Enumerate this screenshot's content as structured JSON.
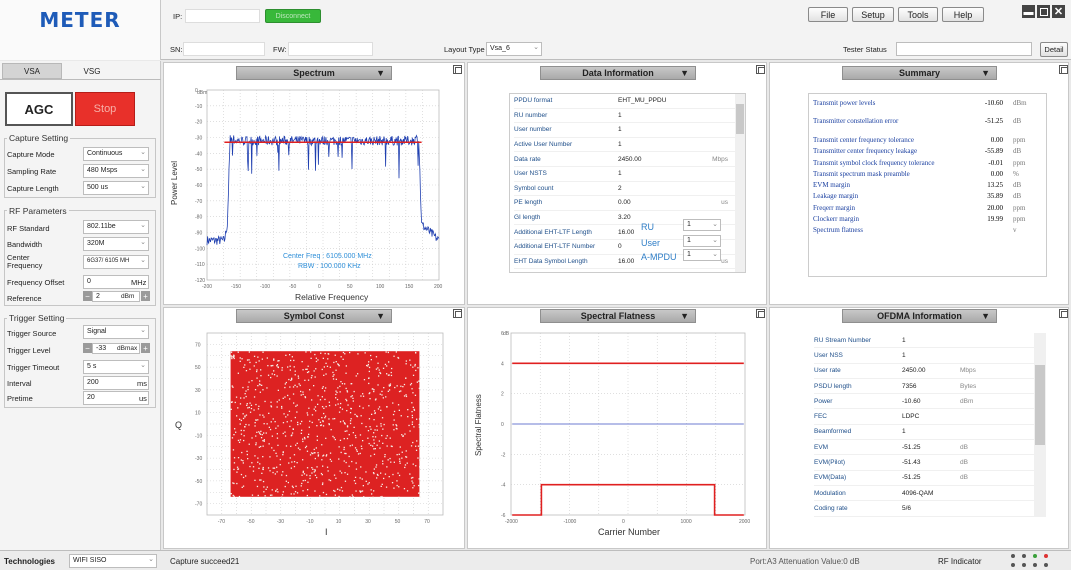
{
  "app": {
    "logo": "METER"
  },
  "top": {
    "ip_label": "IP:",
    "ip_value": "",
    "connect_button": "Disconnect",
    "sn_label": "SN:",
    "sn_value": "",
    "fw_label": "FW:",
    "fw_value": "",
    "layout_label": "Layout Type",
    "layout_value": "Vsa_6",
    "tester_status_label": "Tester Status",
    "tester_status_value": "",
    "detail_button": "Detail"
  },
  "menu": {
    "file": "File",
    "setup": "Setup",
    "tools": "Tools",
    "help": "Help"
  },
  "colors": {
    "stop": "#e8302a",
    "connect": "#38b83a",
    "trace": "#1f3fb0",
    "limit": "#e02020",
    "const": "#dd2222"
  },
  "left": {
    "tabs": [
      "VSA",
      "VSG"
    ],
    "agc_button": "AGC",
    "stop_button": "Stop",
    "capture_title": "Capture Setting",
    "capture_fields": [
      {
        "label": "Capture Mode",
        "value": "Continuous"
      },
      {
        "label": "Sampling Rate",
        "value": "480 Msps"
      },
      {
        "label": "Capture Length",
        "value": "500 us"
      }
    ],
    "rf_title": "RF Parameters",
    "rf_standard": {
      "label": "RF Standard",
      "value": "802.11be"
    },
    "bandwidth": {
      "label": "Bandwidth",
      "value": "320M"
    },
    "center_freq": {
      "label": "Center Frequency",
      "value": "6G37/ 6105 MH"
    },
    "freq_offset": {
      "label": "Frequency Offset",
      "value": "0",
      "unit": "MHz"
    },
    "reference": {
      "label": "Reference",
      "value": "2",
      "unit": "dBm"
    },
    "trigger_title": "Trigger Setting",
    "trigger_source": {
      "label": "Trigger Source",
      "value": "Signal"
    },
    "trigger_level": {
      "label": "Trigger Level",
      "value": "-33",
      "unit": "dBmax"
    },
    "trigger_timeout": {
      "label": "Trigger Timeout",
      "value": "5 s"
    },
    "interval": {
      "label": "Interval",
      "value": "200",
      "unit": "ms"
    },
    "pretime": {
      "label": "Pretime",
      "value": "20",
      "unit": "us"
    }
  },
  "spectrum": {
    "title": "Spectrum",
    "ylabel": "Power Level",
    "xlabel": "Relative Frequency",
    "xunit": "MHz",
    "yunit": "dBm",
    "center_text": "Center Freq : 6105.000 MHz",
    "rbw_text": "RBW : 100.000 KHz"
  },
  "data_info": {
    "title": "Data Information",
    "rows": [
      {
        "k": "PPDU format",
        "v": "EHT_MU_PPDU",
        "u": ""
      },
      {
        "k": "RU number",
        "v": "1",
        "u": ""
      },
      {
        "k": "User number",
        "v": "1",
        "u": ""
      },
      {
        "k": "Active User Number",
        "v": "1",
        "u": ""
      },
      {
        "k": "Data rate",
        "v": "2450.00",
        "u": "Mbps"
      },
      {
        "k": "User NSTS",
        "v": "1",
        "u": ""
      },
      {
        "k": "Symbol count",
        "v": "2",
        "u": ""
      },
      {
        "k": "PE length",
        "v": "0.00",
        "u": "us"
      },
      {
        "k": "GI length",
        "v": "3.20",
        "u": ""
      },
      {
        "k": "Additional EHT-LTF Length",
        "v": "16.00",
        "u": ""
      },
      {
        "k": "Additional EHT-LTF Number",
        "v": "0",
        "u": ""
      },
      {
        "k": "EHT Data Symbol Length",
        "v": "16.00",
        "u": "us"
      }
    ],
    "ru_label": "RU",
    "ru_value": "1",
    "user_label": "User",
    "user_value": "1",
    "ampdu_label": "A-MPDU",
    "ampdu_value": "1"
  },
  "summary": {
    "title": "Summary",
    "rows": [
      {
        "k": "Transmit power levels",
        "v": "-10.60",
        "u": "dBm"
      },
      {
        "k": "Transmitter constellation error",
        "v": "-51.25",
        "u": "dB"
      },
      {
        "k": "Transmit center frequency tolerance",
        "v": "0.00",
        "u": "ppm"
      },
      {
        "k": "Transmitter center frequency leakage",
        "v": "-55.89",
        "u": "dB"
      },
      {
        "k": "Transmit symbol clock frequency tolerance",
        "v": "-0.01",
        "u": "ppm"
      },
      {
        "k": "Transmit spectrum mask preamble",
        "v": "0.00",
        "u": "%"
      },
      {
        "k": "EVM margin",
        "v": "13.25",
        "u": "dB"
      },
      {
        "k": "Leakage margin",
        "v": "35.89",
        "u": "dB"
      },
      {
        "k": "Freqerr margin",
        "v": "20.00",
        "u": "ppm"
      },
      {
        "k": "Clockerr margin",
        "v": "19.99",
        "u": "ppm"
      },
      {
        "k": "Spectrum flatness",
        "v": "",
        "u": "v"
      }
    ]
  },
  "symbol_const": {
    "title": "Symbol Const",
    "ylabel": "Q",
    "xlabel": "I"
  },
  "spectral_flatness": {
    "title": "Spectral Flatness",
    "ylabel": "Spectral Flatness",
    "xlabel": "Carrier Number",
    "yunit": "dB"
  },
  "ofdma": {
    "title": "OFDMA Information",
    "rows": [
      {
        "k": "RU Stream Number",
        "v": "1",
        "u": ""
      },
      {
        "k": "User NSS",
        "v": "1",
        "u": ""
      },
      {
        "k": "User rate",
        "v": "2450.00",
        "u": "Mbps"
      },
      {
        "k": "PSDU length",
        "v": "7356",
        "u": "Bytes"
      },
      {
        "k": "Power",
        "v": "-10.60",
        "u": "dBm"
      },
      {
        "k": "FEC",
        "v": "LDPC",
        "u": ""
      },
      {
        "k": "Beamformed",
        "v": "1",
        "u": ""
      },
      {
        "k": "EVM",
        "v": "-51.25",
        "u": "dB"
      },
      {
        "k": "EVM(Pilot)",
        "v": "-51.43",
        "u": "dB"
      },
      {
        "k": "EVM(Data)",
        "v": "-51.25",
        "u": "dB"
      },
      {
        "k": "Modulation",
        "v": "4096-QAM",
        "u": ""
      },
      {
        "k": "Coding rate",
        "v": "5/6",
        "u": ""
      }
    ]
  },
  "status": {
    "tech_label": "Technologies",
    "tech_value": "WIFI SISO",
    "message": "Capture succeed21",
    "port_text": "Port:A3 Attenuation Value:0 dB",
    "rf_indicator": "RF Indicator"
  },
  "chart_data": [
    {
      "type": "line",
      "title": "Spectrum",
      "xlabel": "Relative Frequency",
      "ylabel": "Power Level",
      "xlim": [
        -200,
        200
      ],
      "ylim": [
        -120,
        0
      ],
      "grid": true,
      "x": [
        -200,
        -170,
        -165,
        -160,
        -155,
        -150,
        155,
        160,
        165,
        170,
        200
      ],
      "series": [
        {
          "values": [
            -95,
            -95,
            -85,
            -30,
            -31,
            -32,
            -32,
            -31,
            -30,
            -85,
            -95
          ]
        }
      ],
      "limit_y": -33
    },
    {
      "type": "scatter",
      "title": "Symbol Const",
      "xlabel": "I",
      "ylabel": "Q",
      "xlim": [
        -80,
        80
      ],
      "ylim": [
        -80,
        80
      ],
      "grid": true,
      "extent": [
        -64,
        64
      ]
    },
    {
      "type": "line",
      "title": "Spectral Flatness",
      "xlabel": "Carrier Number",
      "ylabel": "Spectral Flatness",
      "xlim": [
        -2000,
        2000
      ],
      "ylim": [
        -6,
        6
      ],
      "grid": true,
      "series": [
        {
          "x": [
            -1980,
            1980
          ],
          "values": [
            4,
            4
          ]
        },
        {
          "x": [
            -1980,
            1980
          ],
          "values": [
            0,
            0
          ]
        },
        {
          "x": [
            -1980,
            -1480,
            -1480,
            1480,
            1480,
            1980
          ],
          "values": [
            -6,
            -6,
            -4,
            -4,
            -6,
            -6
          ]
        }
      ]
    }
  ]
}
